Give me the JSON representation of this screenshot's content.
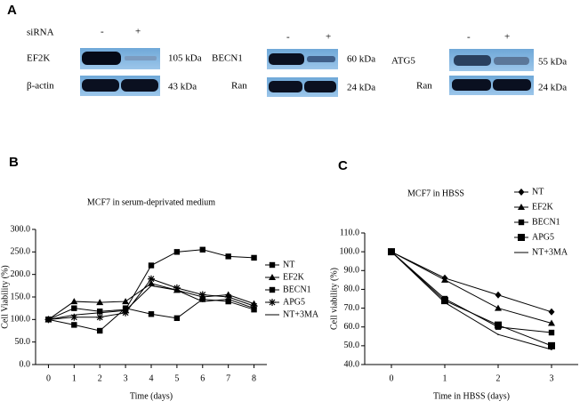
{
  "panel_a": {
    "label": "A",
    "sirna": "siRNA",
    "minus": "-",
    "plus": "+",
    "blots": [
      {
        "target": "EF2K",
        "target_kda": "105 kDa",
        "control": "β-actin",
        "control_kda": "43 kDa"
      },
      {
        "target": "BECN1",
        "target_kda": "60 kDa",
        "control": "Ran",
        "control_kda": "24 kDa"
      },
      {
        "target": "ATG5",
        "target_kda": "55 kDa",
        "control": "Ran",
        "control_kda": "24 kDa"
      }
    ]
  },
  "chart_data": [
    {
      "type": "line",
      "label": "B",
      "title": "MCF7 in serum-deprivated medium",
      "x_label": "Time (days)",
      "y_label": "Cell Viability (%)",
      "categories": [
        "0",
        "1",
        "2",
        "3",
        "4",
        "5",
        "6",
        "7",
        "8"
      ],
      "ylim": [
        0,
        300
      ],
      "yticks": [
        {
          "value": 0,
          "label": "0.0"
        },
        {
          "value": 50,
          "label": "50.0"
        },
        {
          "value": 100,
          "label": "100.0"
        },
        {
          "value": 150,
          "label": "150.0"
        },
        {
          "value": 200,
          "label": "200.0"
        },
        {
          "value": 250,
          "label": "250.0"
        },
        {
          "value": 300,
          "label": "300.0"
        }
      ],
      "series": [
        {
          "name": "NT",
          "color": "#000000",
          "marker": "square",
          "values": [
            100,
            125,
            118,
            122,
            220,
            250,
            255,
            240,
            237
          ]
        },
        {
          "name": "EF2K",
          "color": "#000000",
          "marker": "triangle",
          "values": [
            100,
            140,
            138,
            140,
            180,
            165,
            150,
            155,
            135
          ]
        },
        {
          "name": "BECN1",
          "color": "#000000",
          "marker": "square",
          "values": [
            100,
            88,
            75,
            125,
            112,
            103,
            145,
            140,
            122
          ]
        },
        {
          "name": "APG5",
          "color": "#000000",
          "marker": "star",
          "values": [
            100,
            105,
            105,
            115,
            190,
            170,
            155,
            150,
            130
          ]
        },
        {
          "name": "NT+3MA",
          "color": "#000000",
          "marker": "none",
          "values": [
            100,
            110,
            115,
            120,
            175,
            165,
            140,
            145,
            125
          ]
        }
      ]
    },
    {
      "type": "line",
      "label": "C",
      "title": "MCF7 in HBSS",
      "x_label": "Time in HBSS (days)",
      "y_label": "Cell viability (%)",
      "categories": [
        "0",
        "1",
        "2",
        "3"
      ],
      "ylim": [
        40,
        110
      ],
      "yticks": [
        {
          "value": 40,
          "label": "40.0"
        },
        {
          "value": 50,
          "label": "50.0"
        },
        {
          "value": 60,
          "label": "60.0"
        },
        {
          "value": 70,
          "label": "70.0"
        },
        {
          "value": 80,
          "label": "80.0"
        },
        {
          "value": 90,
          "label": "90.0"
        },
        {
          "value": 100,
          "label": "100.0"
        },
        {
          "value": 110,
          "label": "110.0"
        }
      ],
      "series": [
        {
          "name": "NT",
          "color": "#000000",
          "marker": "diamond",
          "values": [
            100,
            86,
            77,
            68
          ]
        },
        {
          "name": "EF2K",
          "color": "#000000",
          "marker": "triangle",
          "values": [
            100,
            85,
            70,
            62
          ]
        },
        {
          "name": "BECN1",
          "color": "#000000",
          "marker": "square",
          "values": [
            100,
            75,
            60,
            57
          ]
        },
        {
          "name": "APG5",
          "color": "#000000",
          "marker": "big-square",
          "values": [
            100,
            74,
            61,
            50
          ]
        },
        {
          "name": "NT+3MA",
          "color": "#000000",
          "marker": "none",
          "values": [
            100,
            73,
            56,
            48
          ]
        }
      ]
    }
  ]
}
